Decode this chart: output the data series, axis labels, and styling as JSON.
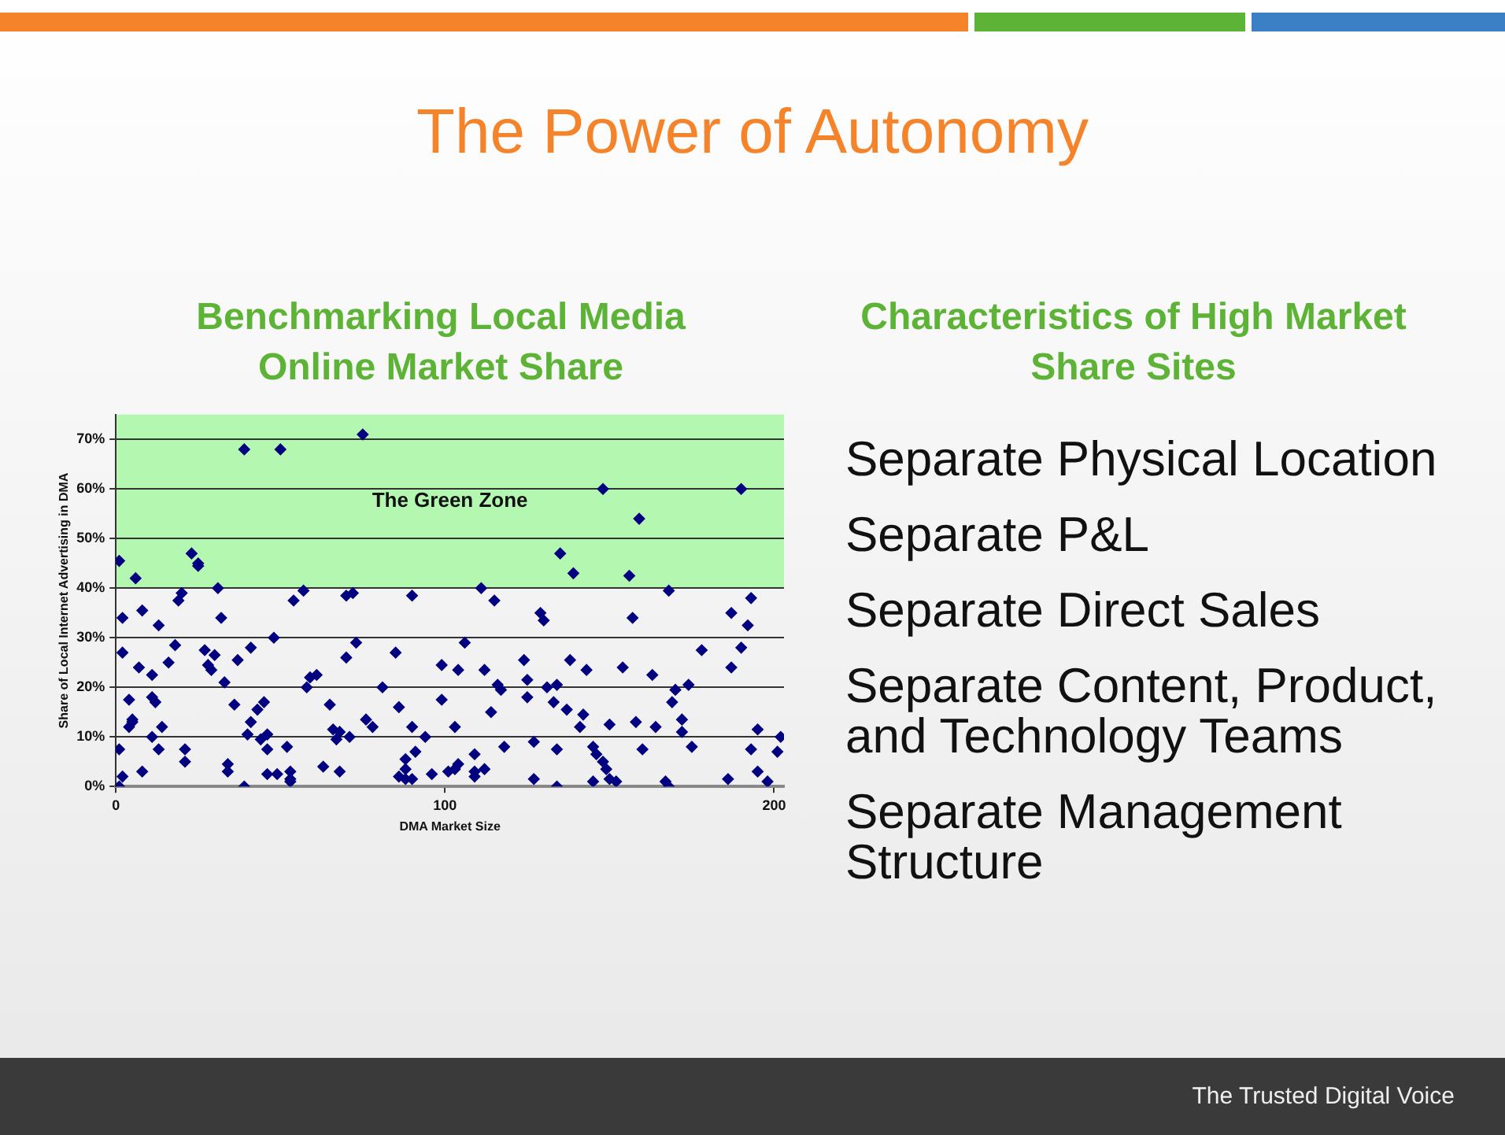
{
  "chart_data": {
    "type": "scatter",
    "title": "The Power of Autonomy",
    "subtitle": "Benchmarking Local Media Online Market Share",
    "xlabel": "DMA Market Size",
    "ylabel": "Share of Local Internet Advertising in DMA",
    "annotations": [
      "Characteristics of High Market Share Sites",
      "Separate Physical Location",
      "Separate P&L",
      "Separate Direct Sales",
      "Separate Content, Product, and Technology Teams",
      "Separate Management Structure",
      "The Trusted Digital Voice"
    ],
    "x": [
      1,
      6,
      23,
      25,
      25,
      31,
      39,
      50,
      20,
      19,
      2,
      8,
      13,
      32,
      54,
      2,
      7,
      11,
      16,
      18,
      27,
      30,
      28,
      29,
      33,
      37,
      41,
      48,
      4,
      11,
      12,
      5,
      5,
      4,
      14,
      11,
      1,
      13,
      21,
      21,
      2,
      8,
      1,
      34,
      34,
      36,
      39,
      40,
      41,
      43,
      45,
      44,
      46,
      46,
      46,
      49,
      53,
      53,
      53,
      52,
      75,
      57,
      70,
      72,
      90,
      111,
      115,
      129,
      130,
      73,
      70,
      85,
      99,
      104,
      106,
      112,
      124,
      61,
      59,
      58,
      81,
      116,
      117,
      125,
      125,
      99,
      65,
      86,
      114,
      76,
      78,
      90,
      103,
      66,
      68,
      67,
      71,
      94,
      127,
      118,
      91,
      109,
      63,
      68,
      88,
      88,
      86,
      88,
      90,
      96,
      101,
      103,
      104,
      109,
      109,
      112,
      127,
      148,
      190,
      159,
      135,
      139,
      156,
      168,
      193,
      187,
      192,
      157,
      190,
      178,
      187,
      138,
      143,
      154,
      163,
      174,
      170,
      169,
      134,
      131,
      133,
      137,
      142,
      141,
      150,
      158,
      164,
      172,
      172,
      195,
      202,
      201,
      193,
      195,
      198,
      186,
      175,
      160,
      145,
      146,
      148,
      149,
      150,
      152,
      145,
      167,
      168,
      134,
      134
    ],
    "values": [
      45.5,
      42,
      47,
      44.5,
      45,
      40,
      68,
      68,
      39,
      37.5,
      34,
      35.5,
      32.5,
      34,
      37.5,
      27,
      24,
      22.5,
      25,
      28.5,
      27.5,
      26.5,
      24.5,
      23.5,
      21,
      25.5,
      28,
      30,
      17.5,
      18,
      17,
      13,
      13.5,
      12,
      12,
      10,
      7.5,
      7.5,
      7.5,
      5,
      2,
      3,
      0,
      4.5,
      3,
      16.5,
      0,
      10.5,
      13,
      15.5,
      17,
      9.5,
      10.5,
      7.5,
      2.5,
      2.5,
      3,
      1.5,
      1,
      8,
      71,
      39.5,
      38.5,
      39,
      38.5,
      40,
      37.5,
      35,
      33.5,
      29,
      26,
      27,
      24.5,
      23.5,
      29,
      23.5,
      25.5,
      22.5,
      22,
      20,
      20,
      20.5,
      19.5,
      21.5,
      18,
      17.5,
      16.5,
      16,
      15,
      13.5,
      12,
      12,
      12,
      11.5,
      11,
      9.5,
      10,
      10,
      9,
      8,
      7,
      6.5,
      4,
      3,
      5.5,
      3.5,
      2,
      1.5,
      1.5,
      2.5,
      3,
      3.5,
      4.5,
      3,
      2,
      3.5,
      1.5,
      60,
      60,
      54,
      47,
      43,
      42.5,
      39.5,
      38,
      35,
      32.5,
      34,
      28,
      27.5,
      24,
      25.5,
      23.5,
      24,
      22.5,
      20.5,
      19.5,
      17,
      20.5,
      20,
      17,
      15.5,
      14.5,
      12,
      12.5,
      13,
      12,
      13.5,
      11,
      11.5,
      10,
      7,
      7.5,
      3,
      1,
      1.5,
      8,
      7.5,
      8,
      6.5,
      5,
      3.5,
      1.5,
      1,
      1,
      1,
      0,
      0,
      7.5
    ],
    "color": "#000080",
    "marker": "diamond",
    "grid": "y",
    "legend": false,
    "xlim": [
      0,
      203
    ],
    "ylim": [
      0,
      75
    ],
    "xticks": [
      0,
      100,
      200
    ],
    "yticks": [
      {
        "value": 0,
        "label": "0%"
      },
      {
        "value": 10,
        "label": "10%"
      },
      {
        "value": 20,
        "label": "20%"
      },
      {
        "value": 30,
        "label": "30%"
      },
      {
        "value": 40,
        "label": "40%"
      },
      {
        "value": 50,
        "label": "50%"
      },
      {
        "value": 60,
        "label": "60%"
      },
      {
        "value": 70,
        "label": "70%"
      }
    ],
    "bands": [
      {
        "axis": "y",
        "from": 40,
        "to": 75,
        "label": "The Green Zone",
        "color": "#b3f7b0"
      }
    ]
  }
}
